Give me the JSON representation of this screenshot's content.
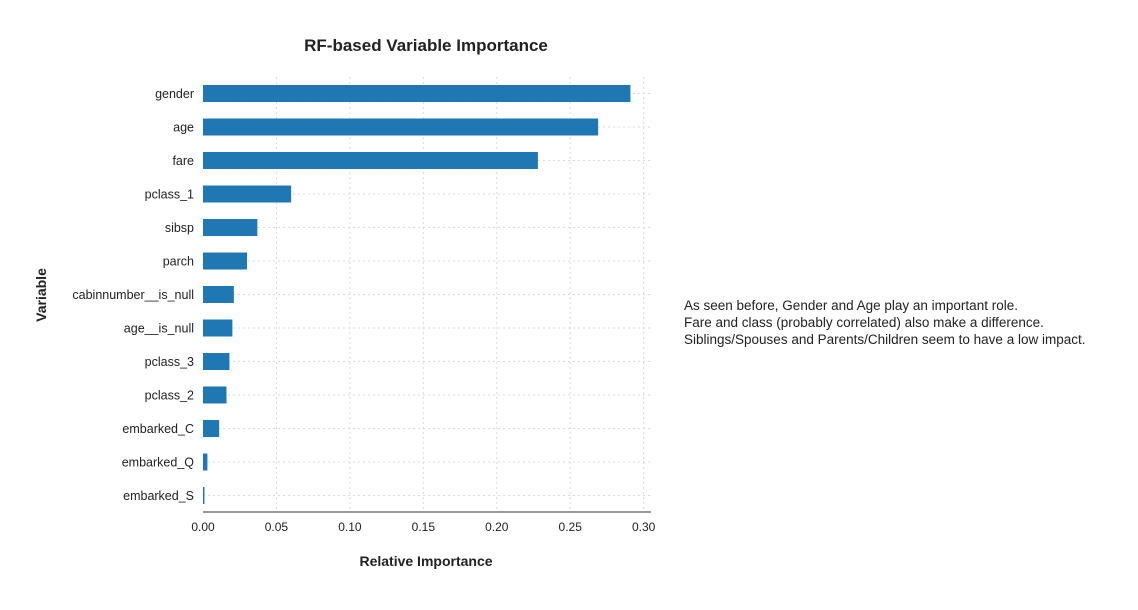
{
  "chart_data": {
    "type": "bar",
    "orientation": "horizontal",
    "title": "RF-based Variable Importance",
    "xlabel": "Relative Importance",
    "ylabel": "Variable",
    "categories": [
      "gender",
      "age",
      "fare",
      "pclass_1",
      "sibsp",
      "parch",
      "cabinnumber__is_null",
      "age__is_null",
      "pclass_3",
      "pclass_2",
      "embarked_C",
      "embarked_Q",
      "embarked_S"
    ],
    "values": [
      0.291,
      0.269,
      0.228,
      0.06,
      0.037,
      0.03,
      0.021,
      0.02,
      0.018,
      0.016,
      0.011,
      0.003,
      0.001
    ],
    "xlim": [
      0,
      0.305
    ],
    "xticks": [
      0.0,
      0.05,
      0.1,
      0.15,
      0.2,
      0.25,
      0.3
    ],
    "xtick_labels": [
      "0.00",
      "0.05",
      "0.10",
      "0.15",
      "0.20",
      "0.25",
      "0.30"
    ],
    "grid": true,
    "bar_color": "#1f77b4"
  },
  "annotation": {
    "lines": [
      "As seen before, Gender and Age play an important role.",
      "Fare and class (probably correlated) also make a difference.",
      "Siblings/Spouses and Parents/Children seem to have a low impact."
    ]
  }
}
